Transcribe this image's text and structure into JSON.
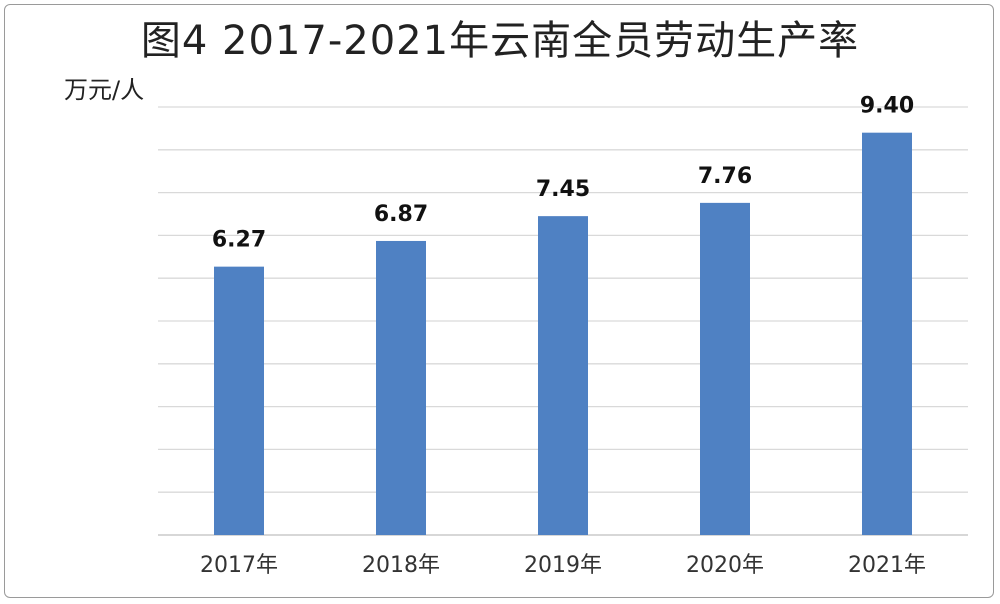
{
  "chart_data": {
    "type": "bar",
    "title": "图4 2017-2021年云南全员劳动生产率",
    "ylabel": "万元/人",
    "xlabel": "",
    "categories": [
      "2017年",
      "2018年",
      "2019年",
      "2020年",
      "2021年"
    ],
    "values": [
      6.27,
      6.87,
      7.45,
      7.76,
      9.4
    ],
    "value_labels": [
      "6.27",
      "6.87",
      "7.45",
      "7.76",
      "9.40"
    ],
    "ylim": [
      0,
      10
    ],
    "grid": true,
    "y_ticks_shown": false,
    "bar_color": "#4f81c3",
    "grid_color": "#d9d9d9"
  }
}
